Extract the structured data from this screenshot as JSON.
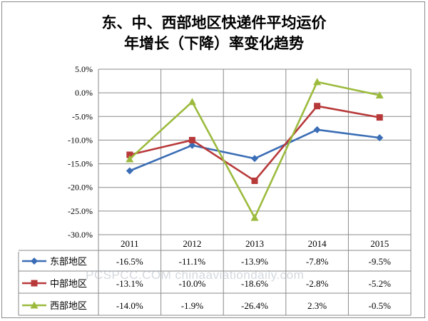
{
  "chart_data": {
    "type": "line",
    "title": "东、中、西部地区快递件平均运价",
    "subtitle": "年增长（下降）率变化趋势",
    "categories": [
      "2011",
      "2012",
      "2013",
      "2014",
      "2015"
    ],
    "ylim": [
      -30,
      5
    ],
    "yticks": [
      5,
      0,
      -5,
      -10,
      -15,
      -20,
      -25,
      -30
    ],
    "ytick_labels": [
      "5.0%",
      "0.0%",
      "-5.0%",
      "-10.0%",
      "-15.0%",
      "-20.0%",
      "-25.0%",
      "-30.0%"
    ],
    "grid": true,
    "legend": "data-table",
    "series": [
      {
        "name": "东部地区",
        "color": "#3a6db5",
        "marker": "diamond",
        "values": [
          -16.5,
          -11.1,
          -13.9,
          -7.8,
          -9.5
        ],
        "labels": [
          "-16.5%",
          "-11.1%",
          "-13.9%",
          "-7.8%",
          "-9.5%"
        ]
      },
      {
        "name": "中部地区",
        "color": "#b8393a",
        "marker": "square",
        "values": [
          -13.1,
          -10.0,
          -18.6,
          -2.8,
          -5.2
        ],
        "labels": [
          "-13.1%",
          "-10.0%",
          "-18.6%",
          "-2.8%",
          "-5.2%"
        ]
      },
      {
        "name": "西部地区",
        "color": "#9cbb3e",
        "marker": "triangle",
        "values": [
          -14.0,
          -1.9,
          -26.4,
          2.3,
          -0.5
        ],
        "labels": [
          "-14.0%",
          "-1.9%",
          "-26.4%",
          "2.3%",
          "-0.5%"
        ]
      }
    ]
  },
  "watermark": "PCSPCC.COM  chinaaviationdaily.com"
}
